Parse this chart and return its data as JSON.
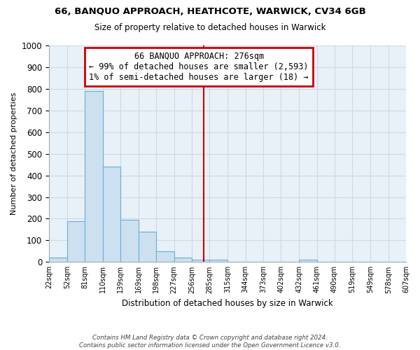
{
  "title": "66, BANQUO APPROACH, HEATHCOTE, WARWICK, CV34 6GB",
  "subtitle": "Size of property relative to detached houses in Warwick",
  "xlabel": "Distribution of detached houses by size in Warwick",
  "ylabel": "Number of detached properties",
  "bar_color": "#cce0f0",
  "bar_edge_color": "#6aaed6",
  "bin_edges": [
    22,
    52,
    81,
    110,
    139,
    169,
    198,
    227,
    256,
    285,
    315,
    344,
    373,
    402,
    432,
    461,
    490,
    519,
    549,
    578,
    607
  ],
  "bar_heights": [
    20,
    190,
    790,
    440,
    195,
    140,
    50,
    20,
    10,
    10,
    0,
    0,
    0,
    0,
    10,
    0,
    0,
    0,
    0,
    0
  ],
  "vline_x": 276,
  "vline_color": "#cc0000",
  "ylim": [
    0,
    1000
  ],
  "yticks": [
    0,
    100,
    200,
    300,
    400,
    500,
    600,
    700,
    800,
    900,
    1000
  ],
  "xtick_labels": [
    "22sqm",
    "52sqm",
    "81sqm",
    "110sqm",
    "139sqm",
    "169sqm",
    "198sqm",
    "227sqm",
    "256sqm",
    "285sqm",
    "315sqm",
    "344sqm",
    "373sqm",
    "402sqm",
    "432sqm",
    "461sqm",
    "490sqm",
    "519sqm",
    "549sqm",
    "578sqm",
    "607sqm"
  ],
  "annotation_title": "66 BANQUO APPROACH: 276sqm",
  "annotation_line1": "← 99% of detached houses are smaller (2,593)",
  "annotation_line2": "1% of semi-detached houses are larger (18) →",
  "annotation_box_color": "#ffffff",
  "annotation_box_edge": "#cc0000",
  "footnote1": "Contains HM Land Registry data © Crown copyright and database right 2024.",
  "footnote2": "Contains public sector information licensed under the Open Government Licence v3.0.",
  "bg_color": "#ffffff",
  "grid_color": "#d0d8e8"
}
